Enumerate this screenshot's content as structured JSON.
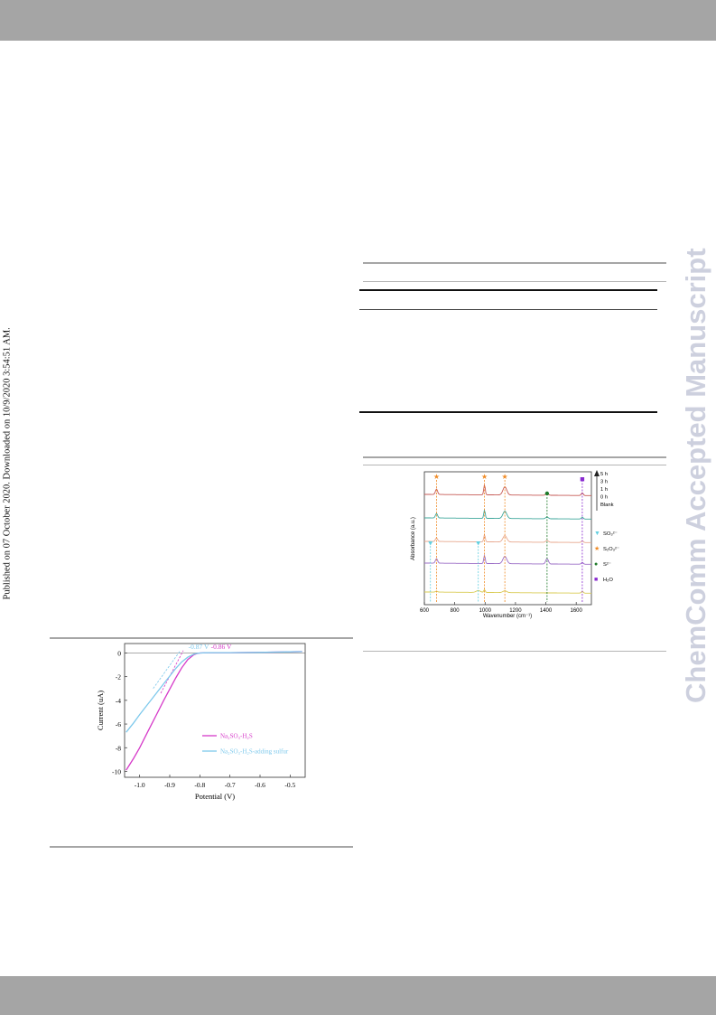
{
  "side_note": "Published on 07 October 2020. Downloaded on 10/9/2020 3:54:51 AM.",
  "watermark": "ChemComm Accepted Manuscript",
  "colors": {
    "band": "#a5a5a5",
    "watermark": "#cdd0de",
    "magenta": "#d63ac9",
    "lightblue": "#7ec9ec"
  },
  "figure_ir": {
    "chart_data": {
      "type": "line",
      "xlabel": "Wavenumber (cm⁻¹)",
      "ylabel": "Absorbance (a.u.)",
      "x_ticks": [
        "600",
        "800",
        "1000",
        "1200",
        "1400",
        "1600"
      ],
      "xlim": [
        600,
        1700
      ],
      "series": [
        {
          "name": "5 h",
          "color": "#c65a55"
        },
        {
          "name": "3 h",
          "color": "#3ea79b"
        },
        {
          "name": "1 h",
          "color": "#e8a78e"
        },
        {
          "name": "0 h",
          "color": "#9b6dc6"
        },
        {
          "name": "Blank",
          "color": "#d9cb52"
        }
      ],
      "legend_arrow_labels": [
        "5 h",
        "3 h",
        "1 h",
        "0 h",
        "Blank"
      ],
      "markers_legend": [
        {
          "symbol": "▼",
          "label": "SO₃²⁻",
          "color": "#62cfe0"
        },
        {
          "symbol": "★",
          "label": "S₂O₃²⁻",
          "color": "#f08a24"
        },
        {
          "symbol": "●",
          "label": "S²⁻",
          "color": "#1f7a2a"
        },
        {
          "symbol": "■",
          "label": "H₂O",
          "color": "#8a2bd0"
        }
      ],
      "peak_markers": [
        {
          "x": 680,
          "symbol": "star"
        },
        {
          "x": 996,
          "symbol": "star"
        },
        {
          "x": 1130,
          "symbol": "star"
        },
        {
          "x": 1408,
          "symbol": "circle"
        },
        {
          "x": 1640,
          "symbol": "square"
        },
        {
          "x": 640,
          "symbol": "triangle"
        },
        {
          "x": 955,
          "symbol": "triangle"
        }
      ]
    }
  },
  "figure_lsv": {
    "chart_data": {
      "type": "line",
      "xlabel": "Potential (V)",
      "ylabel": "Current (uA)",
      "xlim": [
        -1.05,
        -0.45
      ],
      "ylim": [
        -10.5,
        0.8
      ],
      "x_ticks": [
        "-1.0",
        "-0.9",
        "-0.8",
        "-0.7",
        "-0.6",
        "-0.5"
      ],
      "y_ticks": [
        "0",
        "-2",
        "-4",
        "-6",
        "-8",
        "-10"
      ],
      "annotations": [
        {
          "text": "-0.87 V",
          "color": "#7ec9ec"
        },
        {
          "text": "-0.86 V",
          "color": "#d63ac9"
        }
      ],
      "onset_potentials": [
        -0.87,
        -0.86
      ],
      "series": [
        {
          "name": "Na₂SO₃-H₂S",
          "color": "#d63ac9",
          "x": [
            -1.045,
            -1.02,
            -1.0,
            -0.98,
            -0.96,
            -0.94,
            -0.92,
            -0.9,
            -0.88,
            -0.86,
            -0.84,
            -0.82,
            -0.81,
            -0.8,
            -0.78,
            -0.75,
            -0.7,
            -0.6,
            -0.5,
            -0.46
          ],
          "y": [
            -9.9,
            -8.9,
            -8.0,
            -7.0,
            -6.0,
            -5.0,
            -4.0,
            -3.05,
            -2.1,
            -1.25,
            -0.55,
            -0.15,
            -0.05,
            0.0,
            0.02,
            0.03,
            0.03,
            0.05,
            0.1,
            0.12
          ]
        },
        {
          "name": "Na₂SO₃-H₂S-adding sulfur",
          "color": "#7ec9ec",
          "x": [
            -1.045,
            -1.02,
            -1.0,
            -0.98,
            -0.96,
            -0.94,
            -0.92,
            -0.9,
            -0.88,
            -0.86,
            -0.84,
            -0.82,
            -0.81,
            -0.8,
            -0.78,
            -0.75,
            -0.7,
            -0.6,
            -0.5,
            -0.46
          ],
          "y": [
            -6.7,
            -5.9,
            -5.2,
            -4.55,
            -3.9,
            -3.25,
            -2.6,
            -1.95,
            -1.3,
            -0.75,
            -0.35,
            -0.1,
            -0.04,
            0.0,
            0.02,
            0.03,
            0.03,
            0.05,
            0.1,
            0.12
          ]
        }
      ]
    }
  }
}
